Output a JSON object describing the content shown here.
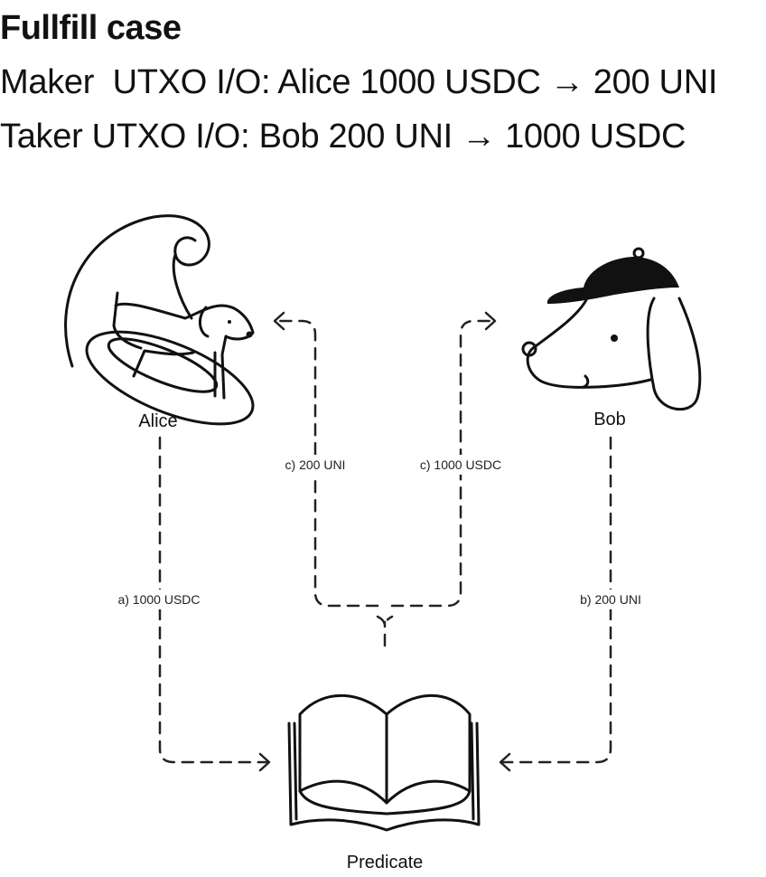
{
  "header": {
    "title": "Fullfill case",
    "maker_line": "Maker  UTXO I/O: Alice 1000 USDC → 200 UNI",
    "taker_line": "Taker UTXO I/O: Bob 200 UNI → 1000 USDC"
  },
  "nodes": {
    "alice": {
      "label": "Alice",
      "icon": "dog-on-surfboard-icon"
    },
    "bob": {
      "label": "Bob",
      "icon": "dog-with-cap-icon"
    },
    "predicate": {
      "label": "Predicate",
      "icon": "open-book-icon"
    }
  },
  "edges": [
    {
      "id": "a",
      "label": "a) 1000 USDC",
      "from": "Alice",
      "to": "Predicate"
    },
    {
      "id": "b",
      "label": "b) 200 UNI",
      "from": "Bob",
      "to": "Predicate"
    },
    {
      "id": "c1",
      "label": "c) 200 UNI",
      "from": "Predicate",
      "to": "Alice"
    },
    {
      "id": "c2",
      "label": "c) 1000 USDC",
      "from": "Predicate",
      "to": "Bob"
    }
  ]
}
